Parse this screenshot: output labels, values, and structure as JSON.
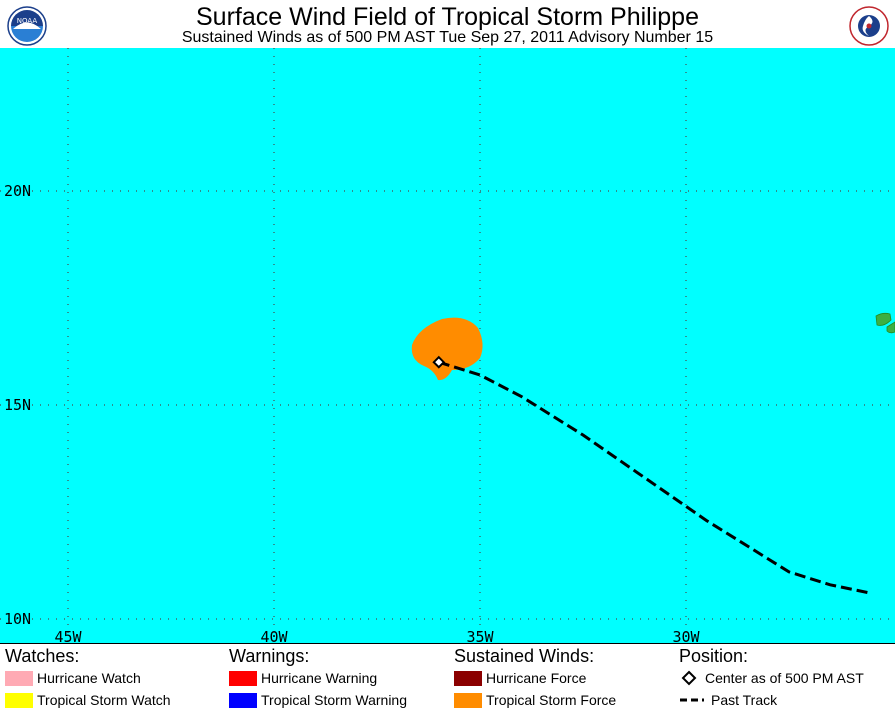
{
  "header": {
    "title": "Surface Wind Field of Tropical Storm Philippe",
    "subtitle": "Sustained Winds as of 500 PM AST Tue Sep 27, 2011    Advisory Number 15",
    "left_logo_text": "NOAA",
    "right_logo_text": "NATIONAL WEATHER SERVICE"
  },
  "map": {
    "ocean_color": "#00ffff",
    "storm_color": "#ff8c00",
    "land_color": "#3cb043",
    "lat_labels": [
      "20N",
      "15N",
      "10N"
    ],
    "lon_labels": [
      "45W",
      "40W",
      "35W",
      "30W"
    ],
    "lat_values": [
      20,
      15,
      10
    ],
    "lon_values": [
      -45,
      -40,
      -35,
      -30
    ],
    "center": {
      "lat": 16.0,
      "lon": -36.0
    },
    "track": [
      {
        "lat": 16.0,
        "lon": -36.0
      },
      {
        "lat": 15.7,
        "lon": -35.0
      },
      {
        "lat": 15.2,
        "lon": -34.0
      },
      {
        "lat": 14.3,
        "lon": -32.5
      },
      {
        "lat": 13.3,
        "lon": -31.0
      },
      {
        "lat": 12.3,
        "lon": -29.5
      },
      {
        "lat": 11.1,
        "lon": -27.5
      },
      {
        "lat": 10.8,
        "lon": -26.5
      },
      {
        "lat": 10.6,
        "lon": -25.5
      }
    ]
  },
  "legend": {
    "watches": {
      "heading": "Watches:",
      "items": [
        {
          "label": "Hurricane Watch",
          "color": "#ffaab4"
        },
        {
          "label": "Tropical Storm Watch",
          "color": "#ffff00"
        }
      ]
    },
    "warnings": {
      "heading": "Warnings:",
      "items": [
        {
          "label": "Hurricane Warning",
          "color": "#ff0000"
        },
        {
          "label": "Tropical Storm Warning",
          "color": "#0000ff"
        }
      ]
    },
    "winds": {
      "heading": "Sustained Winds:",
      "items": [
        {
          "label": "Hurricane Force",
          "color": "#8b0000"
        },
        {
          "label": "Tropical Storm Force",
          "color": "#ff8c00"
        }
      ]
    },
    "position": {
      "heading": "Position:",
      "center_label": "Center as of 500 PM AST",
      "track_label": "Past Track"
    }
  }
}
